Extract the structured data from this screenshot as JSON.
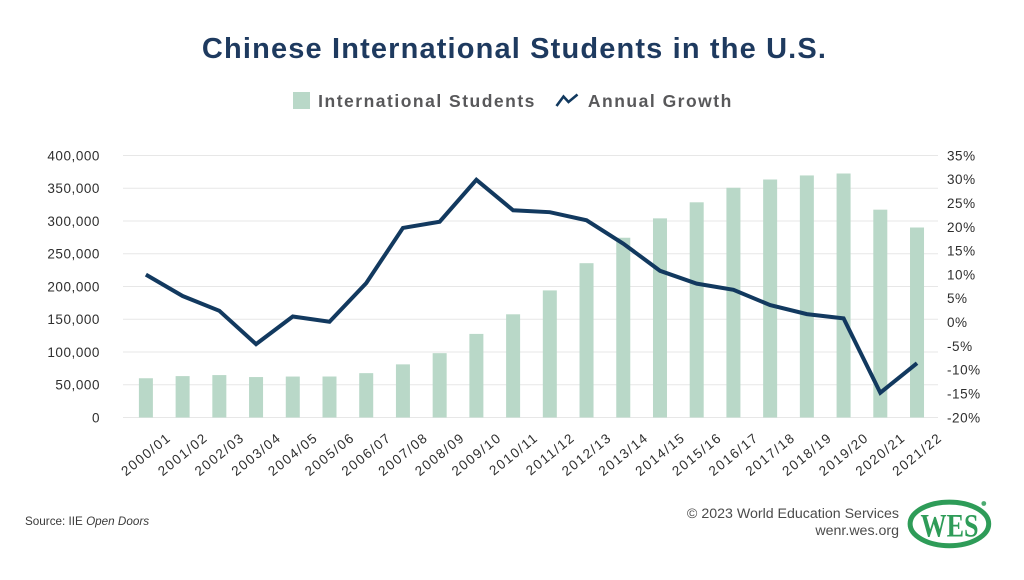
{
  "title": "Chinese International Students in the U.S.",
  "legend": {
    "bars_label": "International Students",
    "line_label": "Annual Growth"
  },
  "footer": {
    "source_prefix": "Source: IIE",
    "source_name": "Open Doors",
    "copyright": "© 2023 World Education Services",
    "website": "wenr.wes.org",
    "logo_text": "WES",
    "logo_registered": "®"
  },
  "colors": {
    "title": "#1e3a5f",
    "bar": "#b9d8c8",
    "line": "#12395f",
    "grid": "#e7e7e7",
    "axis_text": "#2e2e2e",
    "legend_text": "#58585a",
    "footer_text": "#4b4b4b",
    "source_text": "#3a3a3a",
    "logo_green": "#2e9c58",
    "background": "#ffffff"
  },
  "chart_data": {
    "type": "combo-bar-line",
    "title": "Chinese International Students in the U.S.",
    "categories": [
      "2000/01",
      "2001/02",
      "2002/03",
      "2003/04",
      "2004/05",
      "2005/06",
      "2006/07",
      "2007/08",
      "2008/09",
      "2009/10",
      "2010/11",
      "2011/12",
      "2012/13",
      "2013/14",
      "2014/15",
      "2015/16",
      "2016/17",
      "2017/18",
      "2018/19",
      "2019/20",
      "2020/21",
      "2021/22"
    ],
    "series": [
      {
        "name": "International Students",
        "type": "bar",
        "axis": "left",
        "values": [
          59939,
          63211,
          64757,
          61765,
          62523,
          62582,
          67723,
          81127,
          98235,
          127628,
          157558,
          194029,
          235597,
          274439,
          304040,
          328547,
          350755,
          363341,
          369548,
          372532,
          317299,
          290086
        ]
      },
      {
        "name": "Annual Growth",
        "type": "line",
        "axis": "right",
        "values": [
          10.0,
          5.5,
          2.4,
          -4.6,
          1.2,
          0.1,
          8.2,
          19.8,
          21.1,
          29.9,
          23.5,
          23.1,
          21.4,
          16.5,
          10.8,
          8.1,
          6.8,
          3.6,
          1.7,
          0.8,
          -14.8,
          -8.6
        ]
      }
    ],
    "left_axis": {
      "min": 0,
      "max": 400000,
      "step": 50000,
      "tick_labels": [
        "0",
        "50,000",
        "100,000",
        "150,000",
        "200,000",
        "250,000",
        "300,000",
        "350,000",
        "400,000"
      ]
    },
    "right_axis": {
      "min": -20,
      "max": 35,
      "step": 5,
      "tick_labels": [
        "-20%",
        "-15%",
        "-10%",
        "-5%",
        "0%",
        "5%",
        "10%",
        "15%",
        "20%",
        "25%",
        "30%",
        "35%"
      ]
    },
    "grid": "horizontal",
    "legend_position": "top-center"
  }
}
